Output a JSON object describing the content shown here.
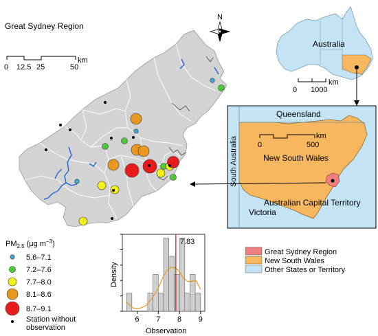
{
  "region_title": "Great Sydney Region",
  "north_label": "N",
  "main_scale": {
    "ticks": [
      "0",
      "12.5",
      "25",
      "50"
    ],
    "unit": "km"
  },
  "australia_inset": {
    "label": "Australia",
    "scale_ticks": [
      "0",
      "1000"
    ],
    "unit": "km"
  },
  "nsw_inset": {
    "labels": {
      "queensland": "Queensland",
      "south_australia": "South Australia",
      "nsw": "New South Wales",
      "victoria": "Victoria",
      "act": "Australian Capital Territory"
    },
    "scale_ticks": [
      "0",
      "500"
    ],
    "unit": "km"
  },
  "legend_pm": {
    "title_prefix": "PM",
    "title_sub": "2.5",
    "title_units": "(μg m",
    "title_sup": "−3",
    "title_close": ")",
    "classes": [
      {
        "label": "5.6–7.1",
        "color": "#3fa9d8",
        "size": "smallest"
      },
      {
        "label": "7.2–7.6",
        "color": "#4cc93a",
        "size": "small"
      },
      {
        "label": "7.7–8.0",
        "color": "#f2f21a",
        "size": "medium"
      },
      {
        "label": "8.1–8.6",
        "color": "#e8981f",
        "size": "large"
      },
      {
        "label": "8.7–9.1",
        "color": "#e81c1c",
        "size": "largest"
      }
    ],
    "station_label_line1": "Station without",
    "station_label_line2": "observation"
  },
  "legend_areas": [
    {
      "label": "Great Sydney Region",
      "color": "#f08080"
    },
    {
      "label": "New South Wales",
      "color": "#f7b75e"
    },
    {
      "label": "Other States or Territory",
      "color": "#c4e4f6"
    }
  ],
  "colors": {
    "map_fill": "#d3d3d3",
    "water": "#1e63d6",
    "nsw": "#f7b75e",
    "other_states": "#c4e4f6",
    "gsr": "#f08080"
  },
  "chart_data": {
    "type": "bar",
    "xlabel": "Observation",
    "ylabel": "Density",
    "xticks": [
      6,
      7,
      8,
      9
    ],
    "xlim": [
      5.3,
      9.2
    ],
    "ylim": [
      0,
      1.4
    ],
    "bins": [
      {
        "x0": 5.5,
        "x1": 5.75,
        "density": 0.33
      },
      {
        "x0": 6.5,
        "x1": 6.75,
        "density": 0.33
      },
      {
        "x0": 6.75,
        "x1": 7.0,
        "density": 0.67
      },
      {
        "x0": 7.0,
        "x1": 7.25,
        "density": 0.33
      },
      {
        "x0": 7.25,
        "x1": 7.5,
        "density": 1.33
      },
      {
        "x0": 7.5,
        "x1": 7.75,
        "density": 1.0
      },
      {
        "x0": 7.75,
        "x1": 8.0,
        "density": 0.67
      },
      {
        "x0": 8.0,
        "x1": 8.25,
        "density": 1.33
      },
      {
        "x0": 8.25,
        "x1": 8.5,
        "density": 0.33
      },
      {
        "x0": 8.5,
        "x1": 8.75,
        "density": 0.67
      },
      {
        "x0": 8.75,
        "x1": 9.0,
        "density": 0.33
      }
    ],
    "density_curve": {
      "x": [
        5.5,
        5.8,
        6.1,
        6.4,
        6.7,
        7.0,
        7.2,
        7.4,
        7.6,
        7.8,
        8.0,
        8.2,
        8.4,
        8.6,
        8.8,
        9.0
      ],
      "y": [
        0.17,
        0.06,
        0.05,
        0.1,
        0.23,
        0.42,
        0.6,
        0.73,
        0.8,
        0.79,
        0.72,
        0.6,
        0.54,
        0.55,
        0.55,
        0.4
      ]
    },
    "mean_value": 7.83,
    "mean_label": "7.83"
  }
}
